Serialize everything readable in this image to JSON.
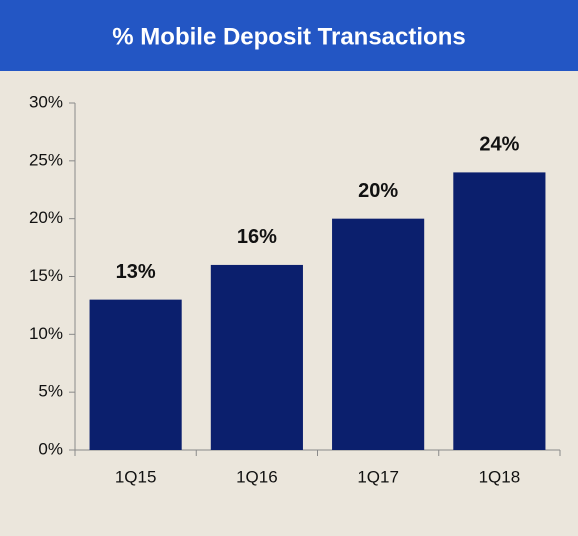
{
  "chart_data": {
    "type": "bar",
    "title": "% Mobile Deposit Transactions",
    "categories": [
      "1Q15",
      "1Q16",
      "1Q17",
      "1Q18"
    ],
    "values": [
      13,
      16,
      20,
      24
    ],
    "value_labels": [
      "13%",
      "16%",
      "20%",
      "24%"
    ],
    "color": "#0b1f6d",
    "ylim": [
      0,
      30
    ],
    "yticks": [
      {
        "value": 0,
        "label": "0%"
      },
      {
        "value": 5,
        "label": "5%"
      },
      {
        "value": 10,
        "label": "10%"
      },
      {
        "value": 15,
        "label": "15%"
      },
      {
        "value": 20,
        "label": "20%"
      },
      {
        "value": 25,
        "label": "25%"
      },
      {
        "value": 30,
        "label": "30%"
      }
    ],
    "grid": false
  }
}
